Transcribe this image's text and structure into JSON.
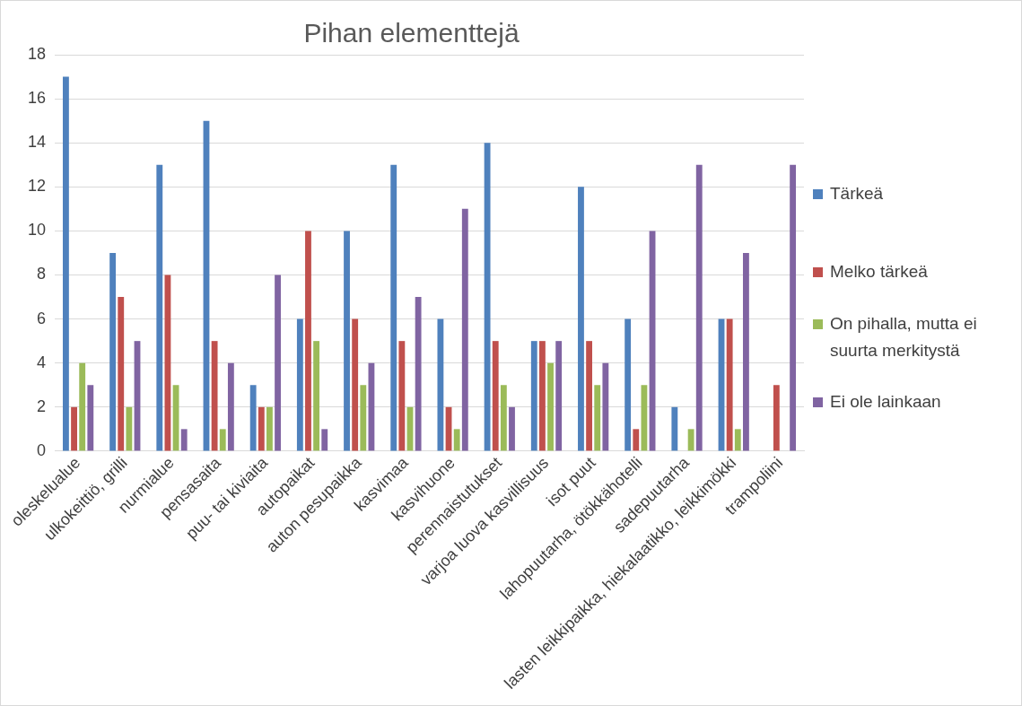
{
  "chart_data": {
    "type": "bar",
    "title": "Pihan elementtejä",
    "categories": [
      "oleskelualue",
      "ulkokeittiö, grilli",
      "nurmialue",
      "pensasaita",
      "puu- tai kiviaita",
      "autopaikat",
      "auton pesupaikka",
      "kasvimaa",
      "kasvihuone",
      "perennaistutukset",
      "varjoa luova kasvillisuus",
      "isot puut",
      "lahopuutarha, ötökkähotelli",
      "sadepuutarha",
      "lasten leikkipaikka, hiekalaatikko, leikkimökki",
      "trampoliini"
    ],
    "series": [
      {
        "name": "Tärkeä",
        "color": "#4f81bd",
        "values": [
          17,
          9,
          13,
          15,
          3,
          6,
          10,
          13,
          6,
          14,
          5,
          12,
          6,
          2,
          6,
          0
        ]
      },
      {
        "name": "Melko tärkeä",
        "color": "#c0504d",
        "values": [
          2,
          7,
          8,
          5,
          2,
          10,
          6,
          5,
          2,
          5,
          5,
          5,
          1,
          0,
          6,
          3
        ]
      },
      {
        "name": "On pihalla, mutta ei suurta merkitystä",
        "color": "#9bbb59",
        "values": [
          4,
          2,
          3,
          1,
          2,
          5,
          3,
          2,
          1,
          3,
          4,
          3,
          3,
          1,
          1,
          0
        ]
      },
      {
        "name": "Ei ole lainkaan",
        "color": "#8064a2",
        "values": [
          3,
          5,
          1,
          4,
          8,
          1,
          4,
          7,
          11,
          2,
          5,
          4,
          10,
          13,
          9,
          13
        ]
      }
    ],
    "ylim": [
      0,
      18
    ],
    "yticks": [
      0,
      2,
      4,
      6,
      8,
      10,
      12,
      14,
      16,
      18
    ],
    "grid": "y",
    "legend": "right"
  }
}
